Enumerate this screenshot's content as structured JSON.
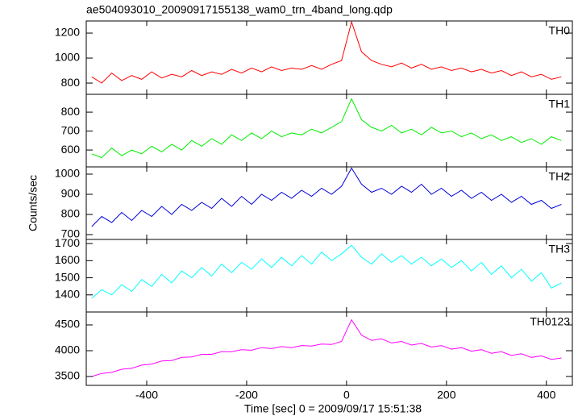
{
  "chart_data": [
    {
      "type": "line",
      "title": "ae504093010_20090917155138_wam0_trn_4band_long.qdp",
      "y_label": "Counts/sec",
      "x": [
        -510,
        -490,
        -470,
        -450,
        -430,
        -410,
        -390,
        -370,
        -350,
        -330,
        -310,
        -290,
        -270,
        -250,
        -230,
        -210,
        -190,
        -170,
        -150,
        -130,
        -110,
        -90,
        -70,
        -50,
        -30,
        -10,
        10,
        30,
        50,
        70,
        90,
        110,
        130,
        150,
        170,
        190,
        210,
        230,
        250,
        270,
        290,
        310,
        330,
        350,
        370,
        390,
        410,
        430
      ],
      "series": [
        {
          "name": "TH0",
          "color": "#ff0000",
          "values": [
            850,
            800,
            880,
            820,
            860,
            830,
            890,
            840,
            870,
            850,
            900,
            860,
            890,
            870,
            910,
            880,
            920,
            890,
            930,
            900,
            920,
            910,
            940,
            910,
            950,
            980,
            1290,
            1050,
            980,
            950,
            930,
            960,
            920,
            950,
            910,
            930,
            900,
            920,
            890,
            910,
            880,
            900,
            860,
            890,
            850,
            870,
            830,
            850
          ]
        }
      ],
      "xlim": [
        -521,
        452
      ],
      "xticks": [
        -400,
        -200,
        0,
        200,
        400
      ],
      "ylim": [
        710,
        1297
      ],
      "yticks": [
        800,
        1000,
        1200
      ]
    },
    {
      "type": "line",
      "x": [
        -510,
        -490,
        -470,
        -450,
        -430,
        -410,
        -390,
        -370,
        -350,
        -330,
        -310,
        -290,
        -270,
        -250,
        -230,
        -210,
        -190,
        -170,
        -150,
        -130,
        -110,
        -90,
        -70,
        -50,
        -30,
        -10,
        10,
        30,
        50,
        70,
        90,
        110,
        130,
        150,
        170,
        190,
        210,
        230,
        250,
        270,
        290,
        310,
        330,
        350,
        370,
        390,
        410,
        430
      ],
      "series": [
        {
          "name": "TH1",
          "color": "#00ee00",
          "values": [
            580,
            560,
            610,
            570,
            600,
            580,
            620,
            590,
            630,
            600,
            650,
            620,
            660,
            630,
            680,
            650,
            690,
            660,
            700,
            670,
            690,
            680,
            710,
            690,
            720,
            750,
            870,
            760,
            720,
            700,
            730,
            690,
            710,
            680,
            720,
            690,
            700,
            670,
            690,
            660,
            680,
            650,
            670,
            640,
            660,
            630,
            670,
            650
          ]
        }
      ],
      "xlim": [
        -521,
        452
      ],
      "xticks": [
        -400,
        -200,
        0,
        200,
        400
      ],
      "ylim": [
        511,
        894
      ],
      "yticks": [
        600,
        700,
        800
      ]
    },
    {
      "type": "line",
      "x": [
        -510,
        -490,
        -470,
        -450,
        -430,
        -410,
        -390,
        -370,
        -350,
        -330,
        -310,
        -290,
        -270,
        -250,
        -230,
        -210,
        -190,
        -170,
        -150,
        -130,
        -110,
        -90,
        -70,
        -50,
        -30,
        -10,
        10,
        30,
        50,
        70,
        90,
        110,
        130,
        150,
        170,
        190,
        210,
        230,
        250,
        270,
        290,
        310,
        330,
        350,
        370,
        390,
        410,
        430
      ],
      "series": [
        {
          "name": "TH2",
          "color": "#0000dd",
          "values": [
            740,
            790,
            760,
            810,
            770,
            820,
            790,
            840,
            800,
            850,
            820,
            860,
            830,
            880,
            840,
            890,
            850,
            900,
            870,
            910,
            880,
            920,
            890,
            930,
            900,
            940,
            1030,
            950,
            910,
            930,
            900,
            940,
            910,
            950,
            900,
            930,
            890,
            920,
            880,
            910,
            870,
            900,
            860,
            890,
            850,
            870,
            830,
            850
          ]
        }
      ],
      "xlim": [
        -521,
        452
      ],
      "xticks": [
        -400,
        -200,
        0,
        200,
        400
      ],
      "ylim": [
        676,
        1036
      ],
      "yticks": [
        700,
        800,
        900,
        1000
      ]
    },
    {
      "type": "line",
      "x": [
        -510,
        -490,
        -470,
        -450,
        -430,
        -410,
        -390,
        -370,
        -350,
        -330,
        -310,
        -290,
        -270,
        -250,
        -230,
        -210,
        -190,
        -170,
        -150,
        -130,
        -110,
        -90,
        -70,
        -50,
        -30,
        -10,
        10,
        30,
        50,
        70,
        90,
        110,
        130,
        150,
        170,
        190,
        210,
        230,
        250,
        270,
        290,
        310,
        330,
        350,
        370,
        390,
        410,
        430
      ],
      "series": [
        {
          "name": "TH3",
          "color": "#00ffff",
          "values": [
            1380,
            1430,
            1400,
            1460,
            1420,
            1490,
            1450,
            1520,
            1470,
            1540,
            1500,
            1560,
            1510,
            1580,
            1530,
            1590,
            1550,
            1610,
            1560,
            1620,
            1570,
            1630,
            1580,
            1650,
            1600,
            1640,
            1690,
            1620,
            1580,
            1640,
            1590,
            1630,
            1580,
            1620,
            1570,
            1610,
            1560,
            1600,
            1540,
            1590,
            1520,
            1570,
            1500,
            1550,
            1480,
            1530,
            1440,
            1470
          ]
        }
      ],
      "xlim": [
        -521,
        452
      ],
      "xticks": [
        -400,
        -200,
        0,
        200,
        400
      ],
      "ylim": [
        1300,
        1724
      ],
      "yticks": [
        1400,
        1500,
        1600,
        1700
      ]
    },
    {
      "type": "line",
      "x_label": "Time [sec] 0 = 2009/09/17 15:51:38",
      "x": [
        -510,
        -490,
        -470,
        -450,
        -430,
        -410,
        -390,
        -370,
        -350,
        -330,
        -310,
        -290,
        -270,
        -250,
        -230,
        -210,
        -190,
        -170,
        -150,
        -130,
        -110,
        -90,
        -70,
        -50,
        -30,
        -10,
        10,
        30,
        50,
        70,
        90,
        110,
        130,
        150,
        170,
        190,
        210,
        230,
        250,
        270,
        290,
        310,
        330,
        350,
        370,
        390,
        410,
        430
      ],
      "series": [
        {
          "name": "TH0123",
          "color": "#ff00ff",
          "values": [
            3500,
            3560,
            3580,
            3640,
            3660,
            3720,
            3740,
            3800,
            3810,
            3870,
            3880,
            3930,
            3930,
            3980,
            3980,
            4020,
            4010,
            4060,
            4040,
            4080,
            4060,
            4100,
            4090,
            4130,
            4120,
            4180,
            4600,
            4300,
            4200,
            4230,
            4150,
            4180,
            4110,
            4140,
            4070,
            4100,
            4030,
            4060,
            3990,
            4020,
            3950,
            3980,
            3910,
            3940,
            3870,
            3900,
            3830,
            3860
          ]
        }
      ],
      "xlim": [
        -521,
        452
      ],
      "xticks": [
        -400,
        -200,
        0,
        200,
        400
      ],
      "ylim": [
        3328,
        4750
      ],
      "yticks": [
        3500,
        4000,
        4500
      ]
    }
  ]
}
